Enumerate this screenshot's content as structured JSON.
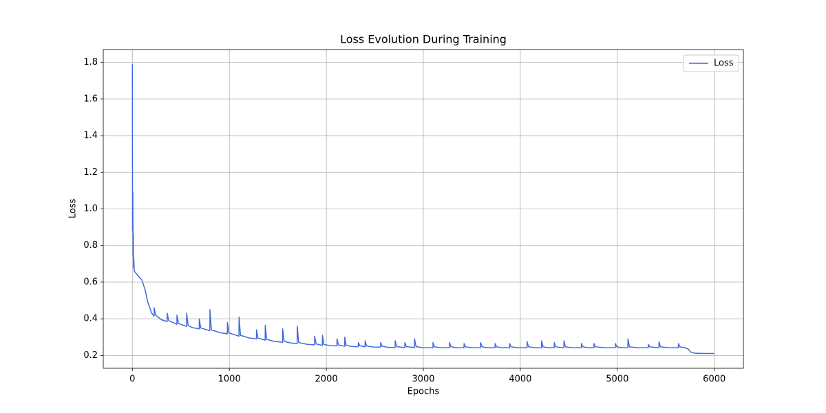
{
  "chart_data": {
    "type": "line",
    "title": "Loss Evolution During Training",
    "x_label": "Epochs",
    "y_label": "Loss",
    "xlim": [
      -300,
      6300
    ],
    "xticks": [
      0,
      1000,
      2000,
      3000,
      4000,
      5000,
      6000
    ],
    "ylim": [
      0.13,
      1.87
    ],
    "yticks": [
      0.2,
      0.4,
      0.6,
      0.8,
      {
        "value": 1,
        "label": "1.0"
      },
      1.2,
      1.4,
      1.6,
      1.8
    ],
    "grid": true,
    "legend": "upper right",
    "x": [
      0,
      2,
      5,
      8,
      10,
      12,
      15,
      20,
      50,
      100,
      130,
      160,
      200,
      224,
      225,
      240,
      300,
      359,
      360,
      375,
      459,
      460,
      475,
      559,
      560,
      575,
      620,
      689,
      690,
      705,
      799,
      800,
      815,
      900,
      979,
      980,
      995,
      1099,
      1100,
      1115,
      1200,
      1279,
      1280,
      1295,
      1369,
      1370,
      1385,
      1460,
      1549,
      1550,
      1565,
      1630,
      1699,
      1700,
      1715,
      1800,
      1879,
      1880,
      1895,
      1959,
      1960,
      1975,
      2040,
      2109,
      2110,
      2125,
      2189,
      2190,
      2205,
      2260,
      2329,
      2330,
      2345,
      2399,
      2400,
      2415,
      2480,
      2559,
      2560,
      2575,
      2640,
      2709,
      2710,
      2725,
      2809,
      2810,
      2825,
      2909,
      2910,
      2925,
      3000,
      3099,
      3100,
      3115,
      3180,
      3269,
      3270,
      3285,
      3350,
      3419,
      3420,
      3435,
      3500,
      3589,
      3590,
      3605,
      3670,
      3739,
      3740,
      3755,
      3810,
      3889,
      3890,
      3905,
      3980,
      4069,
      4070,
      4085,
      4150,
      4219,
      4220,
      4235,
      4290,
      4349,
      4350,
      4365,
      4449,
      4450,
      4465,
      4540,
      4629,
      4630,
      4645,
      4700,
      4759,
      4760,
      4775,
      4870,
      4979,
      4980,
      4995,
      5050,
      5109,
      5110,
      5125,
      5220,
      5319,
      5320,
      5335,
      5429,
      5430,
      5445,
      5530,
      5629,
      5630,
      5645,
      5700,
      5730,
      5760,
      5800,
      5900,
      6000
    ],
    "series": [
      {
        "name": "Loss",
        "color": "#4169e1",
        "values": [
          1.79,
          0.88,
          1.09,
          0.74,
          0.86,
          0.68,
          0.73,
          0.66,
          0.64,
          0.61,
          0.56,
          0.49,
          0.43,
          0.415,
          0.46,
          0.42,
          0.395,
          0.385,
          0.43,
          0.39,
          0.37,
          0.42,
          0.375,
          0.358,
          0.43,
          0.363,
          0.352,
          0.345,
          0.4,
          0.35,
          0.335,
          0.45,
          0.34,
          0.325,
          0.318,
          0.38,
          0.323,
          0.305,
          0.41,
          0.31,
          0.296,
          0.29,
          0.34,
          0.295,
          0.283,
          0.365,
          0.288,
          0.277,
          0.272,
          0.345,
          0.277,
          0.268,
          0.265,
          0.36,
          0.27,
          0.261,
          0.258,
          0.305,
          0.263,
          0.255,
          0.31,
          0.26,
          0.253,
          0.252,
          0.29,
          0.257,
          0.25,
          0.3,
          0.255,
          0.249,
          0.248,
          0.27,
          0.253,
          0.247,
          0.28,
          0.252,
          0.246,
          0.245,
          0.27,
          0.25,
          0.244,
          0.243,
          0.28,
          0.248,
          0.243,
          0.27,
          0.248,
          0.243,
          0.29,
          0.248,
          0.242,
          0.242,
          0.27,
          0.247,
          0.242,
          0.242,
          0.27,
          0.247,
          0.242,
          0.242,
          0.265,
          0.247,
          0.242,
          0.242,
          0.27,
          0.247,
          0.242,
          0.242,
          0.265,
          0.247,
          0.242,
          0.242,
          0.265,
          0.247,
          0.242,
          0.242,
          0.275,
          0.247,
          0.242,
          0.242,
          0.28,
          0.247,
          0.242,
          0.242,
          0.27,
          0.247,
          0.242,
          0.28,
          0.247,
          0.242,
          0.242,
          0.265,
          0.247,
          0.242,
          0.242,
          0.265,
          0.247,
          0.242,
          0.242,
          0.265,
          0.247,
          0.242,
          0.242,
          0.29,
          0.247,
          0.242,
          0.242,
          0.26,
          0.247,
          0.242,
          0.275,
          0.247,
          0.242,
          0.242,
          0.265,
          0.247,
          0.242,
          0.235,
          0.218,
          0.212,
          0.211,
          0.211
        ]
      }
    ]
  }
}
